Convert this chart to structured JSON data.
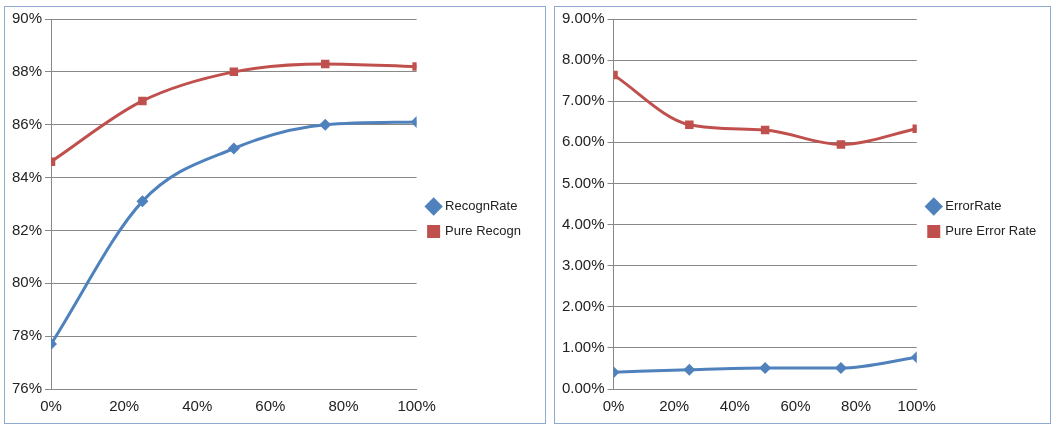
{
  "chart_data": [
    {
      "type": "line",
      "x": [
        0,
        25,
        50,
        75,
        100
      ],
      "series": [
        {
          "name": "RecognRate",
          "color": "#4f81bd",
          "marker": "diamond",
          "values": [
            77.7,
            83.1,
            85.1,
            86.0,
            86.1
          ]
        },
        {
          "name": "Pure Recogn",
          "color": "#c0504d",
          "marker": "square",
          "values": [
            84.6,
            86.9,
            88.0,
            88.3,
            88.2
          ]
        }
      ],
      "xlim": [
        0,
        100
      ],
      "xticks": [
        {
          "value": 0,
          "label": "0%"
        },
        {
          "value": 20,
          "label": "20%"
        },
        {
          "value": 40,
          "label": "40%"
        },
        {
          "value": 60,
          "label": "60%"
        },
        {
          "value": 80,
          "label": "80%"
        },
        {
          "value": 100,
          "label": "100%"
        }
      ],
      "ylim": [
        76,
        90
      ],
      "yticks": [
        {
          "value": 76,
          "label": "76%"
        },
        {
          "value": 78,
          "label": "78%"
        },
        {
          "value": 80,
          "label": "80%"
        },
        {
          "value": 82,
          "label": "82%"
        },
        {
          "value": 84,
          "label": "84%"
        },
        {
          "value": 86,
          "label": "86%"
        },
        {
          "value": 88,
          "label": "88%"
        },
        {
          "value": 90,
          "label": "90%"
        }
      ],
      "grid": "y",
      "legend": "right"
    },
    {
      "type": "line",
      "x": [
        0,
        25,
        50,
        75,
        100
      ],
      "series": [
        {
          "name": "ErrorRate",
          "color": "#4f81bd",
          "marker": "diamond",
          "values": [
            0.41,
            0.47,
            0.51,
            0.51,
            0.77
          ]
        },
        {
          "name": "Pure Error Rate",
          "color": "#c0504d",
          "marker": "square",
          "values": [
            7.64,
            6.43,
            6.3,
            5.95,
            6.33
          ]
        }
      ],
      "xlim": [
        0,
        100
      ],
      "xticks": [
        {
          "value": 0,
          "label": "0%"
        },
        {
          "value": 20,
          "label": "20%"
        },
        {
          "value": 40,
          "label": "40%"
        },
        {
          "value": 60,
          "label": "60%"
        },
        {
          "value": 80,
          "label": "80%"
        },
        {
          "value": 100,
          "label": "100%"
        }
      ],
      "ylim": [
        0,
        9
      ],
      "yticks": [
        {
          "value": 0,
          "label": "0.00%"
        },
        {
          "value": 1,
          "label": "1.00%"
        },
        {
          "value": 2,
          "label": "2.00%"
        },
        {
          "value": 3,
          "label": "3.00%"
        },
        {
          "value": 4,
          "label": "4.00%"
        },
        {
          "value": 5,
          "label": "5.00%"
        },
        {
          "value": 6,
          "label": "6.00%"
        },
        {
          "value": 7,
          "label": "7.00%"
        },
        {
          "value": 8,
          "label": "8.00%"
        },
        {
          "value": 9,
          "label": "9.00%"
        }
      ],
      "grid": "y",
      "legend": "right"
    }
  ]
}
